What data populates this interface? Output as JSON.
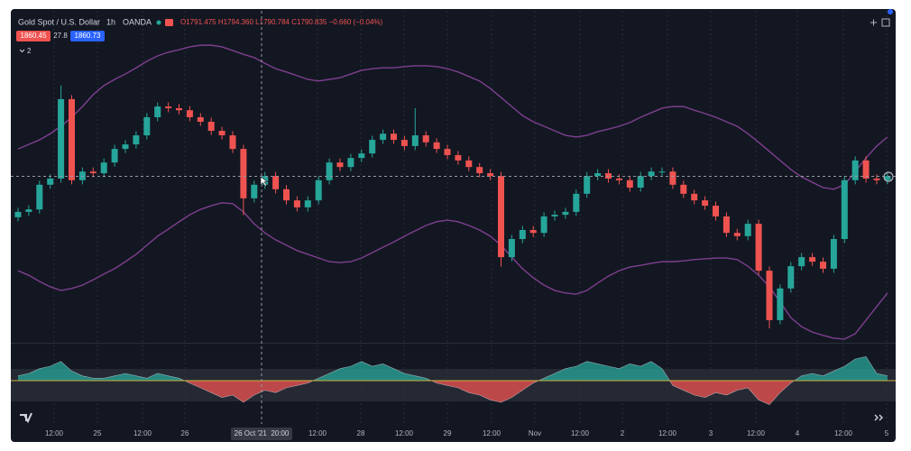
{
  "chart_data": {
    "type": "candlestick",
    "title": "Gold Spot / U.S. Dollar",
    "interval": "1h",
    "source": "OANDA",
    "ohlc_text": "O1791.475 H1794.360 L1790.784 C1790.835 −0.660 (−0.04%)",
    "sell_price": 1860.45,
    "spread": 27.8,
    "buy_price": 1860.73,
    "indicator_count": "2",
    "crosshair_label": "26 Oct '21  20:00",
    "x_labels": [
      "12:00",
      "25",
      "12:00",
      "26",
      "12:00",
      "28",
      "12:00",
      "29",
      "12:00",
      "Nov",
      "12:00",
      "2",
      "12:00",
      "3",
      "12:00",
      "4",
      "12:00",
      "5"
    ],
    "up_color": "#26a69a",
    "down_color": "#ef5350",
    "band_color": "#7e3f8f",
    "ylim": [
      1820,
      1900
    ],
    "open": [
      1850.5,
      1851.8,
      1852.4,
      1858.4,
      1859.9,
      1879.2,
      1859.5,
      1861.6,
      1861.2,
      1863.8,
      1867.1,
      1868.2,
      1870.4,
      1874.8,
      1877.4,
      1877.0,
      1876.5,
      1874.8,
      1873.7,
      1871.5,
      1870.4,
      1867.1,
      1855.1,
      1858.4,
      1860.5,
      1857.3,
      1854.6,
      1852.9,
      1854.6,
      1859.5,
      1863.8,
      1862.7,
      1864.9,
      1866.0,
      1869.3,
      1870.8,
      1869.3,
      1867.8,
      1870.4,
      1868.7,
      1867.1,
      1865.6,
      1864.3,
      1862.7,
      1861.2,
      1860.5,
      1840.8,
      1845.2,
      1847.4,
      1846.7,
      1850.7,
      1851.1,
      1851.8,
      1856.2,
      1860.5,
      1861.2,
      1859.9,
      1859.5,
      1857.7,
      1860.5,
      1861.6,
      1861.6,
      1858.4,
      1856.2,
      1854.6,
      1853.3,
      1850.7,
      1846.7,
      1845.9,
      1848.9,
      1837.5,
      1825.5,
      1833.2,
      1838.6,
      1840.8,
      1839.7,
      1838.0,
      1845.2,
      1859.5,
      1864.3,
      1859.9,
      1859.5
    ],
    "high": [
      1852.8,
      1853.4,
      1859.4,
      1860.9,
      1882.5,
      1880.2,
      1862.6,
      1862.6,
      1864.8,
      1868.1,
      1869.2,
      1871.4,
      1875.8,
      1878.4,
      1878.4,
      1878.0,
      1877.5,
      1875.8,
      1874.7,
      1872.5,
      1871.4,
      1868.1,
      1859.4,
      1861.5,
      1861.5,
      1858.3,
      1855.6,
      1855.6,
      1860.5,
      1864.8,
      1864.8,
      1865.9,
      1867.0,
      1870.3,
      1871.8,
      1871.8,
      1870.3,
      1877.0,
      1871.4,
      1869.7,
      1868.1,
      1866.6,
      1865.3,
      1863.7,
      1862.2,
      1861.5,
      1846.2,
      1848.4,
      1848.4,
      1851.7,
      1852.1,
      1852.8,
      1857.2,
      1861.5,
      1862.2,
      1862.2,
      1860.9,
      1860.5,
      1861.5,
      1862.6,
      1862.6,
      1862.6,
      1859.4,
      1857.2,
      1855.6,
      1854.3,
      1851.7,
      1847.7,
      1849.9,
      1849.9,
      1838.5,
      1834.2,
      1839.6,
      1841.8,
      1841.8,
      1840.7,
      1846.2,
      1860.5,
      1865.3,
      1865.3,
      1860.9,
      1861.5
    ],
    "low": [
      1849.5,
      1850.8,
      1851.4,
      1857.4,
      1858.9,
      1858.5,
      1858.5,
      1860.2,
      1860.2,
      1862.8,
      1866.1,
      1867.2,
      1869.4,
      1873.8,
      1876.0,
      1875.5,
      1873.8,
      1872.7,
      1870.5,
      1869.4,
      1866.1,
      1851.0,
      1854.1,
      1857.4,
      1856.3,
      1853.6,
      1851.9,
      1851.9,
      1853.6,
      1858.5,
      1861.7,
      1861.7,
      1863.9,
      1865.0,
      1868.3,
      1868.3,
      1866.8,
      1866.8,
      1867.7,
      1866.1,
      1864.6,
      1863.3,
      1861.7,
      1860.2,
      1859.5,
      1838.5,
      1839.8,
      1844.2,
      1845.7,
      1845.7,
      1849.7,
      1850.1,
      1850.8,
      1855.2,
      1859.5,
      1858.9,
      1858.5,
      1856.7,
      1856.7,
      1859.5,
      1860.6,
      1857.4,
      1855.2,
      1853.6,
      1852.3,
      1849.7,
      1845.7,
      1844.9,
      1844.9,
      1836.5,
      1823.5,
      1824.5,
      1832.2,
      1837.6,
      1838.7,
      1837.0,
      1837.0,
      1844.2,
      1858.5,
      1858.9,
      1858.5,
      1858.5
    ],
    "close": [
      1851.8,
      1852.4,
      1858.4,
      1859.9,
      1879.2,
      1859.5,
      1861.6,
      1861.2,
      1863.8,
      1867.1,
      1868.2,
      1870.4,
      1874.8,
      1877.4,
      1877.0,
      1876.5,
      1874.8,
      1873.7,
      1871.5,
      1870.4,
      1867.1,
      1855.1,
      1858.4,
      1860.5,
      1857.3,
      1854.6,
      1852.9,
      1854.6,
      1859.5,
      1863.8,
      1862.7,
      1864.9,
      1866.0,
      1869.3,
      1870.8,
      1869.3,
      1867.8,
      1870.4,
      1868.7,
      1867.1,
      1865.6,
      1864.3,
      1862.7,
      1861.2,
      1860.5,
      1840.8,
      1845.2,
      1847.4,
      1846.7,
      1850.7,
      1851.1,
      1851.8,
      1856.2,
      1860.5,
      1861.2,
      1859.9,
      1859.5,
      1857.7,
      1860.5,
      1861.6,
      1861.6,
      1858.4,
      1856.2,
      1854.6,
      1853.3,
      1850.7,
      1846.7,
      1845.9,
      1848.9,
      1837.5,
      1825.5,
      1833.2,
      1838.6,
      1840.8,
      1839.7,
      1838.0,
      1845.2,
      1859.5,
      1864.3,
      1859.9,
      1859.5,
      1860.5
    ],
    "upper_band": [
      1867.1,
      1868.2,
      1869.3,
      1870.8,
      1872.6,
      1874.8,
      1877.4,
      1880.3,
      1882.5,
      1884.0,
      1885.3,
      1886.8,
      1888.4,
      1889.7,
      1890.6,
      1891.2,
      1891.9,
      1892.3,
      1892.3,
      1891.9,
      1891.0,
      1890.1,
      1889.3,
      1887.9,
      1886.6,
      1885.8,
      1884.9,
      1884.0,
      1883.6,
      1884.0,
      1884.4,
      1885.3,
      1886.2,
      1886.6,
      1886.8,
      1886.8,
      1887.1,
      1887.3,
      1887.3,
      1887.1,
      1886.6,
      1885.8,
      1884.7,
      1883.6,
      1881.8,
      1879.6,
      1877.4,
      1875.2,
      1873.7,
      1872.6,
      1871.5,
      1870.4,
      1870.0,
      1870.4,
      1871.3,
      1871.9,
      1872.6,
      1873.5,
      1874.8,
      1875.9,
      1877.0,
      1877.4,
      1877.4,
      1876.5,
      1875.7,
      1874.8,
      1873.7,
      1872.6,
      1870.8,
      1868.7,
      1866.5,
      1864.3,
      1862.1,
      1860.3,
      1859.0,
      1857.7,
      1857.3,
      1858.4,
      1861.6,
      1864.9,
      1867.8,
      1870.0
    ],
    "lower_band": [
      1837.5,
      1836.4,
      1834.9,
      1833.6,
      1832.7,
      1833.2,
      1834.0,
      1835.3,
      1836.7,
      1838.0,
      1839.7,
      1841.5,
      1843.7,
      1845.9,
      1847.6,
      1849.4,
      1851.1,
      1852.4,
      1853.3,
      1854.0,
      1853.8,
      1851.8,
      1848.9,
      1846.7,
      1845.0,
      1843.7,
      1842.4,
      1841.5,
      1840.6,
      1839.7,
      1839.5,
      1839.7,
      1840.6,
      1841.9,
      1843.2,
      1844.5,
      1845.9,
      1847.2,
      1848.5,
      1849.4,
      1849.8,
      1849.4,
      1848.5,
      1847.4,
      1845.9,
      1843.7,
      1840.8,
      1838.0,
      1835.8,
      1834.0,
      1832.7,
      1832.1,
      1831.8,
      1832.7,
      1834.5,
      1836.2,
      1837.5,
      1838.4,
      1838.8,
      1839.3,
      1839.7,
      1839.7,
      1839.9,
      1840.2,
      1840.4,
      1840.6,
      1840.6,
      1840.2,
      1838.6,
      1836.4,
      1833.6,
      1829.9,
      1826.1,
      1823.9,
      1822.6,
      1821.8,
      1821.1,
      1820.9,
      1822.2,
      1825.5,
      1828.8,
      1832.1
    ],
    "oscillator": [
      2,
      3,
      5,
      6,
      8,
      4,
      2,
      1,
      1,
      2,
      3,
      2,
      1,
      3,
      2,
      1,
      -1,
      -3,
      -5,
      -7,
      -6,
      -9,
      -6,
      -4,
      -5,
      -3,
      -2,
      -1,
      1,
      3,
      5,
      6,
      8,
      6,
      7,
      5,
      3,
      2,
      1,
      -1,
      -2,
      -3,
      -5,
      -6,
      -8,
      -9,
      -7,
      -4,
      -1,
      1,
      3,
      5,
      6,
      8,
      7,
      6,
      5,
      7,
      6,
      8,
      5,
      -2,
      -4,
      -6,
      -7,
      -5,
      -6,
      -4,
      -3,
      -8,
      -10,
      -5,
      -1,
      2,
      3,
      2,
      4,
      6,
      9,
      10,
      3,
      2
    ],
    "oscillator_lim": [
      -12,
      12
    ]
  }
}
